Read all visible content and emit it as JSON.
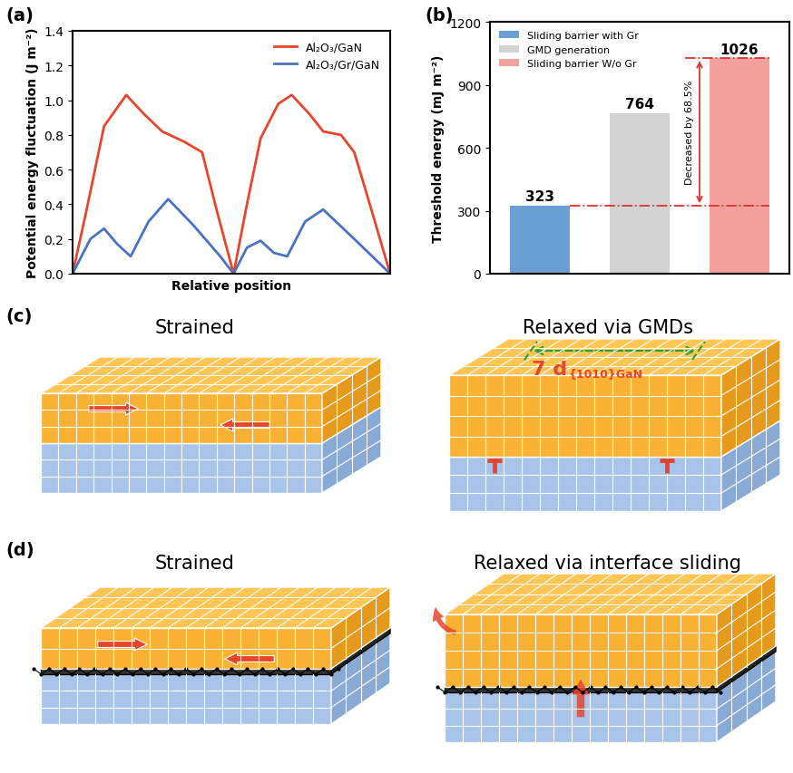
{
  "chart_data": [
    {
      "type": "line",
      "panel": "(a)",
      "x_label": "Relative position",
      "y_label": "Potential energy fluctuation (J m⁻²)",
      "xlim": [
        0,
        1
      ],
      "ylim": [
        0,
        1.4
      ],
      "yticks": [
        0.0,
        0.2,
        0.4,
        0.6,
        0.8,
        1.0,
        1.2,
        1.4
      ],
      "tick_labels": "y",
      "legend": "upper right",
      "series": [
        {
          "name": "Al₂O₃/GaN",
          "color": "#e8452c",
          "x": [
            0,
            0.042,
            0.099,
            0.169,
            0.225,
            0.282,
            0.352,
            0.408,
            0.456,
            0.507,
            0.549,
            0.592,
            0.648,
            0.69,
            0.746,
            0.789,
            0.845,
            0.887,
            0.944,
            1
          ],
          "values": [
            0,
            0.35,
            0.85,
            1.03,
            0.92,
            0.82,
            0.76,
            0.7,
            0.35,
            0.0,
            0.4,
            0.78,
            0.98,
            1.03,
            0.92,
            0.82,
            0.8,
            0.7,
            0.35,
            0
          ]
        },
        {
          "name": "Al₂O₃/Gr/GaN",
          "color": "#4a72c4",
          "x": [
            0,
            0.056,
            0.099,
            0.141,
            0.183,
            0.239,
            0.301,
            0.38,
            0.465,
            0.507,
            0.549,
            0.592,
            0.634,
            0.676,
            0.732,
            0.789,
            0.887,
            1
          ],
          "values": [
            0,
            0.2,
            0.26,
            0.17,
            0.1,
            0.3,
            0.43,
            0.28,
            0.1,
            0.0,
            0.15,
            0.19,
            0.12,
            0.1,
            0.3,
            0.37,
            0.2,
            0
          ]
        }
      ]
    },
    {
      "type": "bar",
      "panel": "(b)",
      "y_label": "Threshold energy (mJ m⁻²)",
      "categories": [
        null,
        null,
        null
      ],
      "ylim": [
        0,
        1200
      ],
      "yticks": [
        0,
        300,
        600,
        900,
        1200
      ],
      "tick_labels": "y",
      "legend": "upper left",
      "data_labels": true,
      "annotations": [
        "Decreased by 68.5%"
      ],
      "series": [
        {
          "name": "Sliding barrier with Gr",
          "color": "#6a9fd4",
          "values": [
            323,
            null,
            null
          ]
        },
        {
          "name": "GMD generation",
          "color": "#d3d3d3",
          "values": [
            null,
            764,
            null
          ]
        },
        {
          "name": "Sliding barrier W/o Gr",
          "color": "#f4a09c",
          "values": [
            null,
            null,
            1026
          ]
        }
      ]
    }
  ],
  "diagrams": [
    {
      "panel": "(c)",
      "left": {
        "title": "Strained"
      },
      "right": {
        "title": "Relaxed via GMDs",
        "spacing_label": "7 d",
        "spacing_subscript": "{1010}GaN"
      }
    },
    {
      "panel": "(d)",
      "left": {
        "title": "Strained"
      },
      "right": {
        "title": "Relaxed via interface sliding"
      }
    }
  ]
}
